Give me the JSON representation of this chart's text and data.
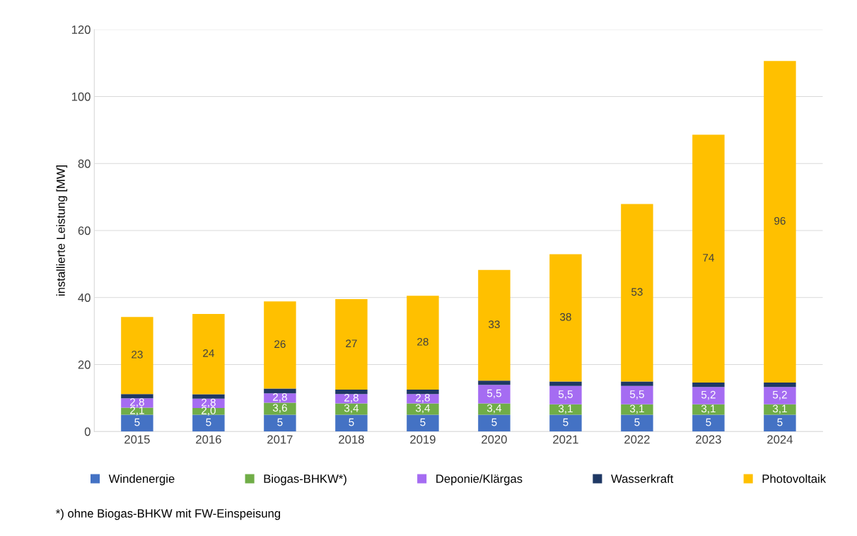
{
  "chart_data": {
    "type": "bar",
    "stacked": true,
    "ylabel": "installierte Leistung [MW]",
    "categories": [
      "2015",
      "2016",
      "2017",
      "2018",
      "2019",
      "2020",
      "2021",
      "2022",
      "2023",
      "2024"
    ],
    "series": [
      {
        "name": "Windenergie",
        "color": "#4472c4",
        "values": [
          5,
          5,
          5,
          5,
          5,
          5,
          5,
          5,
          5,
          5
        ],
        "value_labels": [
          "5",
          "5",
          "5",
          "5",
          "5",
          "5",
          "5",
          "5",
          "5",
          "5"
        ]
      },
      {
        "name": "Biogas-BHKW*)",
        "color": "#70ad47",
        "values": [
          2.1,
          2.0,
          3.6,
          3.4,
          3.4,
          3.4,
          3.1,
          3.1,
          3.1,
          3.1
        ],
        "value_labels": [
          "2,1",
          "2,0",
          "3,6",
          "3,4",
          "3,4",
          "3,4",
          "3,1",
          "3,1",
          "3,1",
          "3,1"
        ]
      },
      {
        "name": "Deponie/Klärgas",
        "color": "#a56cf2",
        "values": [
          2.8,
          2.8,
          2.8,
          2.8,
          2.8,
          5.5,
          5.5,
          5.5,
          5.2,
          5.2
        ],
        "value_labels": [
          "2,8",
          "2,8",
          "2,8",
          "2,8",
          "2,8",
          "5,5",
          "5,5",
          "5,5",
          "5,2",
          "5,2"
        ]
      },
      {
        "name": "Wasserkraft",
        "color": "#1f3864",
        "values": [
          1.3,
          1.3,
          1.4,
          1.3,
          1.3,
          1.3,
          1.3,
          1.3,
          1.3,
          1.3
        ]
      },
      {
        "name": "Photovoltaik",
        "color": "#ffc000",
        "values": [
          23,
          24,
          26,
          27,
          28,
          33,
          38,
          53,
          74,
          96
        ],
        "value_labels": [
          "23",
          "24",
          "26",
          "27",
          "28",
          "33",
          "38",
          "53",
          "74",
          "96"
        ]
      }
    ],
    "ylim": [
      0,
      120
    ],
    "yticks": [
      0,
      20,
      40,
      60,
      80,
      100,
      120
    ],
    "grid": "y",
    "legend": "bottom",
    "annotations": [
      "*) ohne Biogas-BHKW mit FW-Einspeisung"
    ]
  }
}
